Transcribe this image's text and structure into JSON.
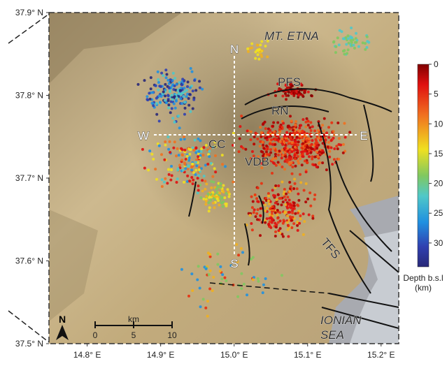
{
  "map": {
    "lat_range": [
      37.5,
      37.9
    ],
    "lon_range": [
      14.748,
      15.224
    ],
    "lat_ticks": [
      {
        "value": 37.9,
        "label": "37.9° N"
      },
      {
        "value": 37.8,
        "label": "37.8° N"
      },
      {
        "value": 37.7,
        "label": "37.7° N"
      },
      {
        "value": 37.6,
        "label": "37.6° N"
      },
      {
        "value": 37.5,
        "label": "37.5° N"
      }
    ],
    "lon_ticks": [
      {
        "value": 14.8,
        "label": "14.8° E"
      },
      {
        "value": 14.9,
        "label": "14.9° E"
      },
      {
        "value": 15.0,
        "label": "15.0° E"
      },
      {
        "value": 15.1,
        "label": "15.1° E"
      },
      {
        "value": 15.2,
        "label": "15.2° E"
      }
    ],
    "places": {
      "etna": "MT. ETNA",
      "pfs": "PFS",
      "rn": "RN",
      "cc": "CC",
      "vdb": "VDB",
      "tfs": "TFS",
      "ionian": "IONIAN",
      "sea": "SEA"
    },
    "cross": {
      "n": "N",
      "s": "S",
      "w": "W",
      "e": "E"
    },
    "north": "N",
    "scale": {
      "unit": "km",
      "ticks": [
        0,
        5,
        10
      ]
    },
    "colorbar": {
      "title": [
        "Depth b.s.l",
        "(km)"
      ],
      "range": [
        0,
        34
      ],
      "ticks": [
        0,
        5,
        10,
        15,
        20,
        25,
        30
      ]
    }
  }
}
